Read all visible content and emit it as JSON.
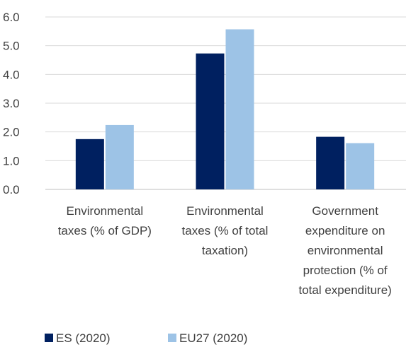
{
  "chart_data": {
    "type": "bar",
    "categories": [
      [
        "Environmental",
        "taxes (% of GDP)"
      ],
      [
        "Environmental",
        "taxes (% of total",
        "taxation)"
      ],
      [
        "Government",
        "expenditure on",
        "environmental",
        "protection (% of",
        "total expenditure)"
      ]
    ],
    "series": [
      {
        "name": "ES (2020)",
        "color": "#002060",
        "values": [
          1.75,
          4.73,
          1.83
        ]
      },
      {
        "name": "EU27 (2020)",
        "color": "#9DC3E6",
        "values": [
          2.24,
          5.57,
          1.61
        ]
      }
    ],
    "ylim": [
      0,
      6
    ],
    "yticks": [
      "0.0",
      "1.0",
      "2.0",
      "3.0",
      "4.0",
      "5.0",
      "6.0"
    ],
    "grid": true,
    "legend_position": "bottom-left"
  }
}
